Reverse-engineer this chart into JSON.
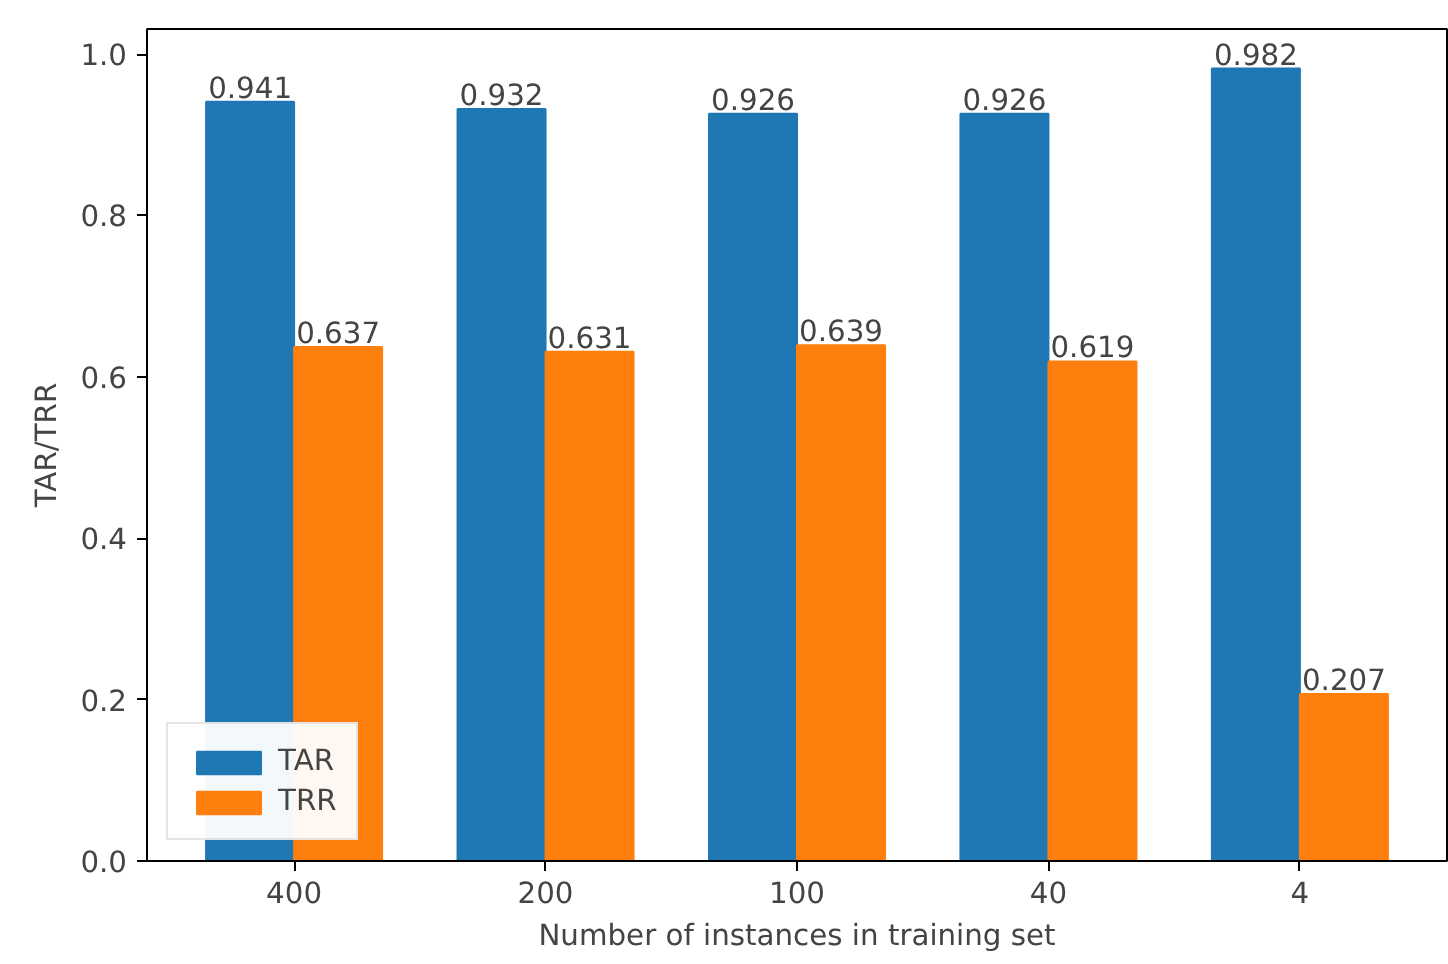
{
  "chart_data": {
    "type": "bar",
    "xlabel": "Number of instances in training set",
    "ylabel": "TAR/TRR",
    "categories": [
      "400",
      "200",
      "100",
      "40",
      "4"
    ],
    "series": [
      {
        "name": "TAR",
        "color": "#1f77b4",
        "values": [
          0.941,
          0.932,
          0.926,
          0.926,
          0.982
        ]
      },
      {
        "name": "TRR",
        "color": "#ff7f0e",
        "values": [
          0.637,
          0.631,
          0.639,
          0.619,
          0.207
        ]
      }
    ],
    "ylim": [
      0,
      1.031
    ],
    "yticks": [
      {
        "value": 0,
        "label": "0.0"
      },
      {
        "value": 0.2,
        "label": "0.2"
      },
      {
        "value": 0.4,
        "label": "0.4"
      },
      {
        "value": 0.6,
        "label": "0.6"
      },
      {
        "value": 0.8,
        "label": "0.8"
      },
      {
        "value": 1.0,
        "label": "1.0"
      }
    ],
    "data_labels": true,
    "legend": "bottom left",
    "grid": false
  }
}
